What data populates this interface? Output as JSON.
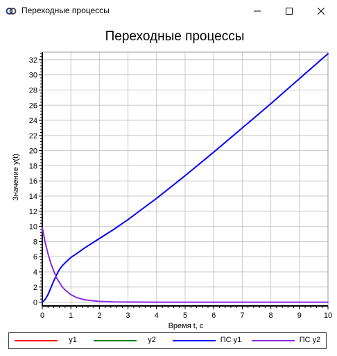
{
  "window": {
    "title": "Переходные процессы",
    "app_icon": "app-icon",
    "buttons": [
      "minimize-icon",
      "maximize-icon",
      "close-icon"
    ]
  },
  "chart_data": {
    "type": "line",
    "title": "Переходные процессы",
    "xlabel": "Время t, c",
    "ylabel": "Значение y(t)",
    "xlim": [
      0,
      10
    ],
    "ylim": [
      -0.5,
      33
    ],
    "x_ticks": [
      0,
      1,
      2,
      3,
      4,
      5,
      6,
      7,
      8,
      9,
      10
    ],
    "y_ticks": [
      0,
      2,
      4,
      6,
      8,
      10,
      12,
      14,
      16,
      18,
      20,
      22,
      24,
      26,
      28,
      30,
      32
    ],
    "grid": true,
    "legend_placement": "bottom",
    "series": [
      {
        "name": "y1",
        "color": "#ff0000",
        "x": [],
        "y": []
      },
      {
        "name": "y2",
        "color": "#008000",
        "x": [],
        "y": []
      },
      {
        "name": "ПС y1",
        "color": "#0000ff",
        "x": [
          0,
          0.1,
          0.2,
          0.3,
          0.4,
          0.5,
          0.6,
          0.7,
          0.8,
          1.0,
          1.2,
          1.5,
          2.0,
          2.5,
          3.0,
          3.5,
          4.0,
          5.0,
          6.0,
          7.0,
          8.0,
          9.0,
          10.0
        ],
        "y": [
          0,
          0.35,
          1.0,
          1.9,
          2.8,
          3.6,
          4.3,
          4.8,
          5.2,
          5.9,
          6.4,
          7.2,
          8.4,
          9.6,
          10.9,
          12.3,
          13.7,
          16.7,
          19.8,
          23.0,
          26.2,
          29.5,
          32.8
        ]
      },
      {
        "name": "ПС y2",
        "color": "#8a2be2",
        "x": [
          0,
          0.1,
          0.2,
          0.3,
          0.4,
          0.5,
          0.6,
          0.7,
          0.8,
          1.0,
          1.2,
          1.5,
          2.0,
          2.5,
          3.0,
          4.0,
          5.0,
          6.0,
          7.0,
          8.0,
          9.0,
          10.0
        ],
        "y": [
          9.8,
          7.9,
          6.4,
          5.1,
          4.1,
          3.2,
          2.6,
          2.0,
          1.6,
          1.0,
          0.6,
          0.3,
          0.1,
          0.03,
          0.01,
          0,
          0,
          0,
          0,
          0,
          0,
          0
        ]
      }
    ]
  }
}
